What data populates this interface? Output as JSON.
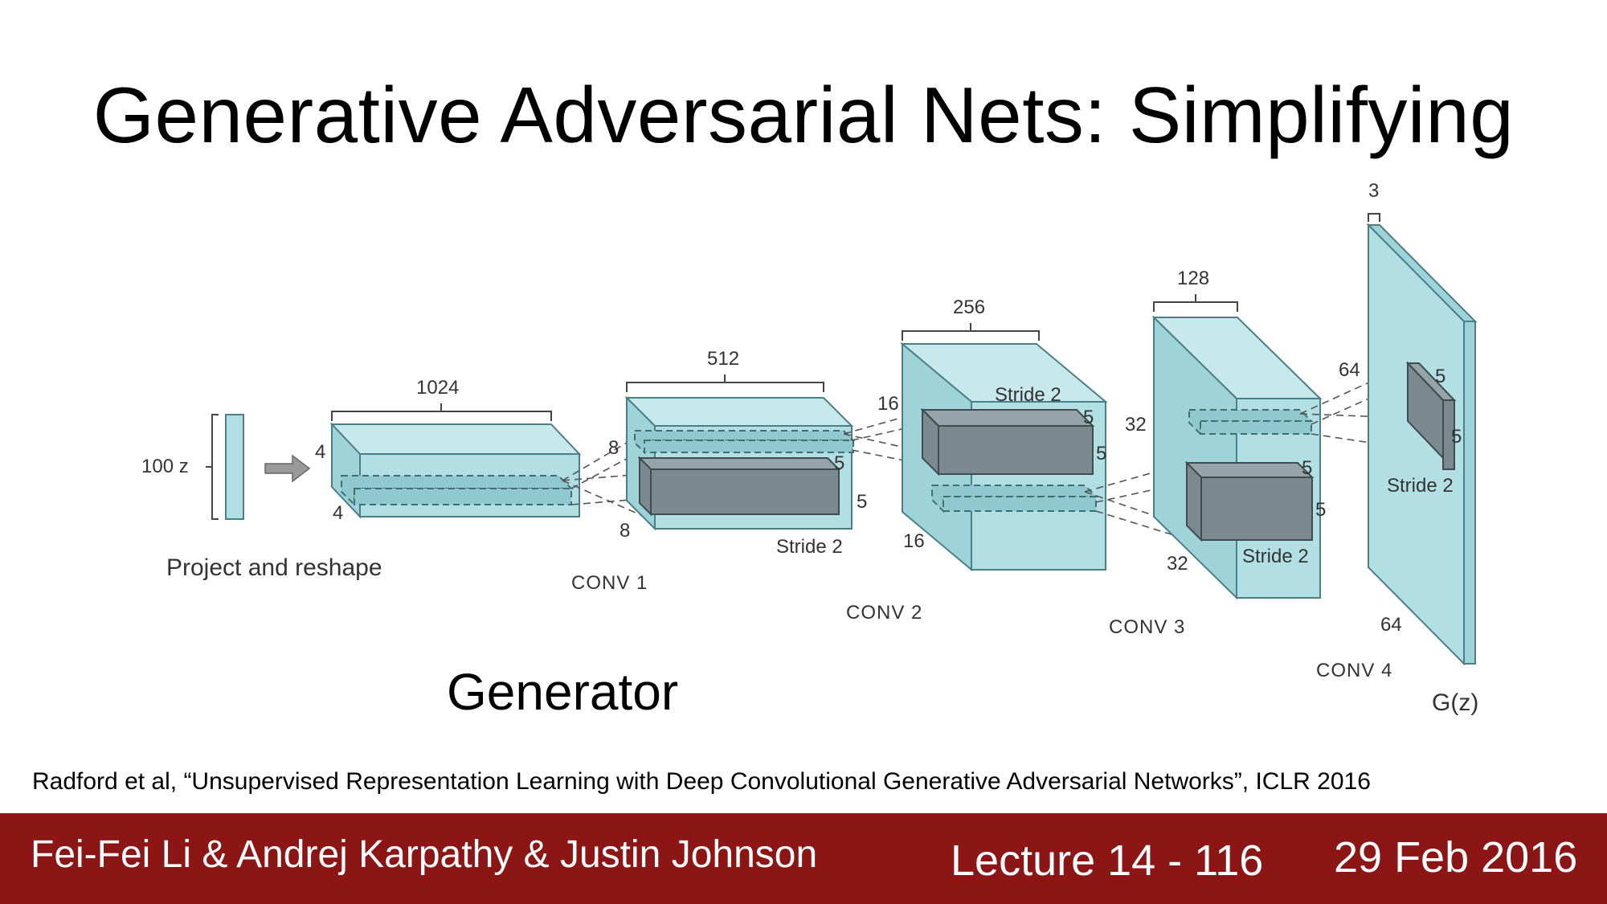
{
  "slide": {
    "title": "Generative Adversarial Nets: Simplifying",
    "subtitle_label": "Generator",
    "citation": "Radford et al, “Unsupervised Representation Learning with Deep Convolutional Generative Adversarial Networks”, ICLR 2016"
  },
  "diagram": {
    "input": {
      "label": "100 z",
      "caption": "Project and reshape"
    },
    "block0": {
      "depth": "1024",
      "height": "4",
      "width": "4"
    },
    "conv1": {
      "name": "CONV 1",
      "depth": "512",
      "height": "8",
      "width": "8",
      "k1": "5",
      "k2": "5",
      "stride": "Stride 2"
    },
    "conv2": {
      "name": "CONV 2",
      "depth": "256",
      "height": "16",
      "width": "16",
      "stride": "Stride 2",
      "k1": "5",
      "k2": "5"
    },
    "conv3": {
      "name": "CONV 3",
      "depth": "128",
      "height": "32",
      "width": "32",
      "k1": "5",
      "k2": "5",
      "stride": "Stride 2"
    },
    "conv4": {
      "name": "CONV 4",
      "depth": "3",
      "height": "64",
      "width": "64",
      "k1": "5",
      "k2": "5",
      "stride": "Stride 2",
      "output": "G(z)"
    }
  },
  "footer": {
    "authors": "Fei-Fei Li & Andrej Karpathy & Justin Johnson",
    "lecture": "Lecture 14 - 116",
    "date": "29 Feb 2016"
  },
  "colors": {
    "block_fill": "#bfe3e6",
    "block_front": "#a9dde2",
    "block_stroke": "#4b7f86",
    "filter_fill": "#7f8e92",
    "footer_bg": "#8c1515"
  }
}
